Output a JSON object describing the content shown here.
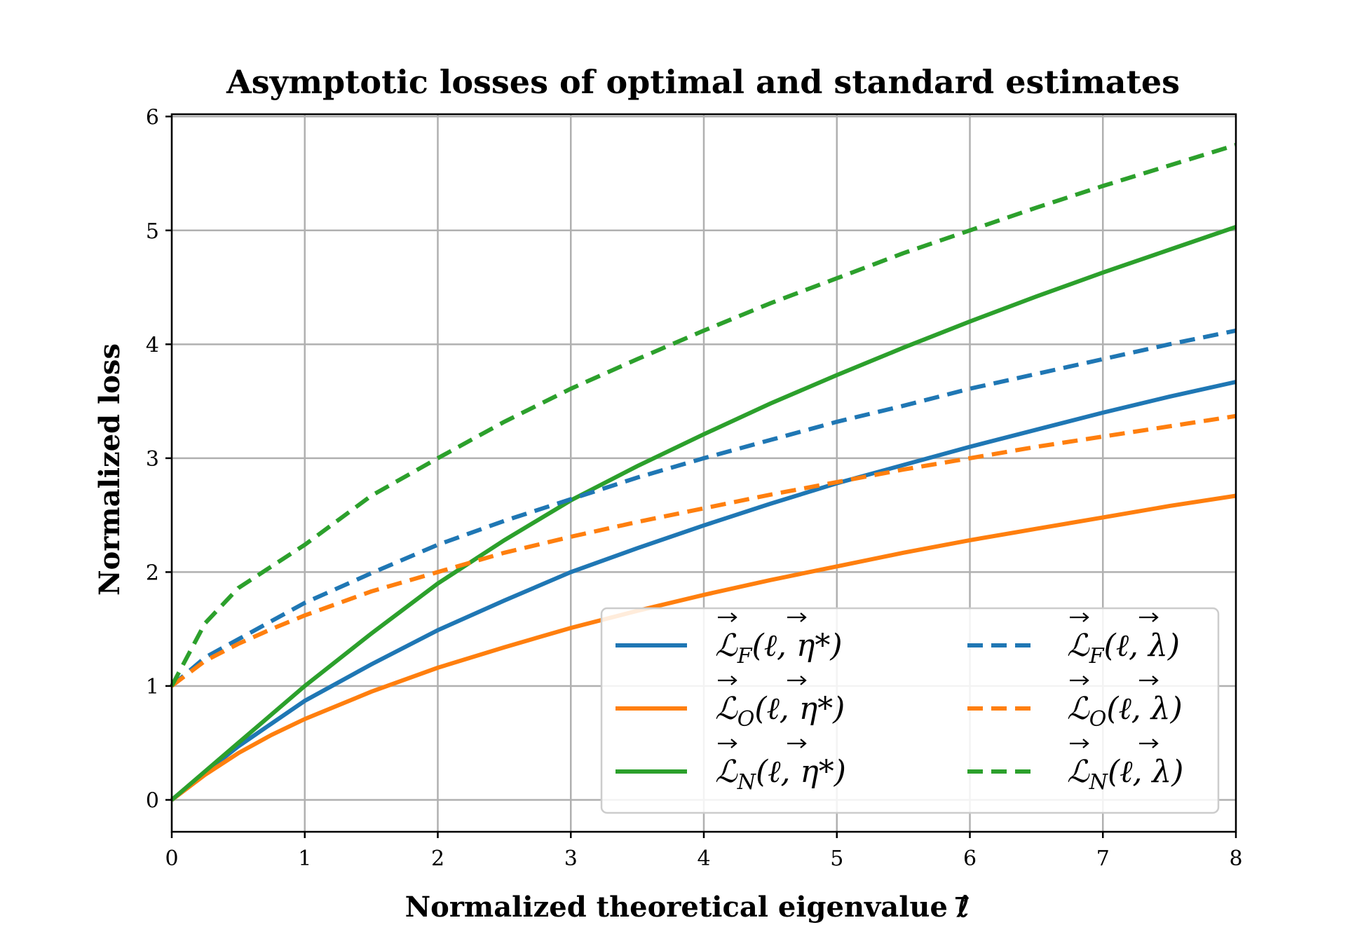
{
  "chart_data": {
    "type": "line",
    "title": "Asymptotic losses of optimal and standard estimates",
    "xlabel": "Normalized theoretical eigenvalue ℓ⃗",
    "ylabel": "Normalized loss",
    "xlim": [
      0,
      8
    ],
    "ylim": [
      -0.28,
      6.02
    ],
    "xticks": [
      0,
      1,
      2,
      3,
      4,
      5,
      6,
      7,
      8
    ],
    "yticks": [
      0,
      1,
      2,
      3,
      4,
      5,
      6
    ],
    "grid": true,
    "legend_position": "lower-right",
    "colors": {
      "blue": "#1f77b4",
      "orange": "#ff7f0e",
      "green": "#2ca02c"
    },
    "x": [
      0,
      0.25,
      0.5,
      0.75,
      1,
      1.5,
      2,
      2.5,
      3,
      3.5,
      4,
      4.5,
      5,
      5.5,
      6,
      6.5,
      7,
      7.5,
      8
    ],
    "series": [
      {
        "name": "L⃗F(ℓ⃗, η*)",
        "color": "#1f77b4",
        "style": "solid",
        "values": [
          0,
          0.24,
          0.47,
          0.67,
          0.87,
          1.19,
          1.49,
          1.75,
          2.0,
          2.21,
          2.41,
          2.6,
          2.78,
          2.94,
          3.1,
          3.25,
          3.4,
          3.54,
          3.67
        ]
      },
      {
        "name": "L⃗O(ℓ⃗, η*)",
        "color": "#ff7f0e",
        "style": "solid",
        "values": [
          0,
          0.22,
          0.41,
          0.57,
          0.71,
          0.95,
          1.16,
          1.34,
          1.51,
          1.66,
          1.8,
          1.93,
          2.05,
          2.17,
          2.28,
          2.38,
          2.48,
          2.58,
          2.67
        ]
      },
      {
        "name": "L⃗N(ℓ⃗, η*)",
        "color": "#2ca02c",
        "style": "solid",
        "values": [
          0,
          0.25,
          0.5,
          0.75,
          1.0,
          1.46,
          1.9,
          2.28,
          2.63,
          2.93,
          3.21,
          3.48,
          3.73,
          3.97,
          4.2,
          4.42,
          4.63,
          4.83,
          5.03
        ]
      },
      {
        "name": "L⃗F(ℓ⃗, λ)",
        "color": "#1f77b4",
        "style": "dashed",
        "values": [
          1,
          1.25,
          1.41,
          1.57,
          1.73,
          1.99,
          2.24,
          2.45,
          2.64,
          2.83,
          3.0,
          3.16,
          3.32,
          3.46,
          3.61,
          3.74,
          3.87,
          4.0,
          4.12
        ]
      },
      {
        "name": "L⃗O(ℓ⃗, λ)",
        "color": "#ff7f0e",
        "style": "dashed",
        "values": [
          1,
          1.22,
          1.37,
          1.5,
          1.62,
          1.83,
          2.0,
          2.17,
          2.31,
          2.44,
          2.56,
          2.68,
          2.79,
          2.9,
          3.0,
          3.1,
          3.19,
          3.28,
          3.37
        ]
      },
      {
        "name": "L⃗N(ℓ⃗, λ)",
        "color": "#2ca02c",
        "style": "dashed",
        "values": [
          1,
          1.55,
          1.86,
          2.05,
          2.24,
          2.67,
          3.0,
          3.32,
          3.61,
          3.87,
          4.12,
          4.36,
          4.58,
          4.8,
          5.0,
          5.2,
          5.39,
          5.57,
          5.75
        ]
      }
    ]
  },
  "legend": {
    "items": [
      {
        "sub": "F",
        "arg": "η*"
      },
      {
        "sub": "O",
        "arg": "η*"
      },
      {
        "sub": "N",
        "arg": "η*"
      },
      {
        "sub": "F",
        "arg": "λ"
      },
      {
        "sub": "O",
        "arg": "λ"
      },
      {
        "sub": "N",
        "arg": "λ"
      }
    ]
  }
}
